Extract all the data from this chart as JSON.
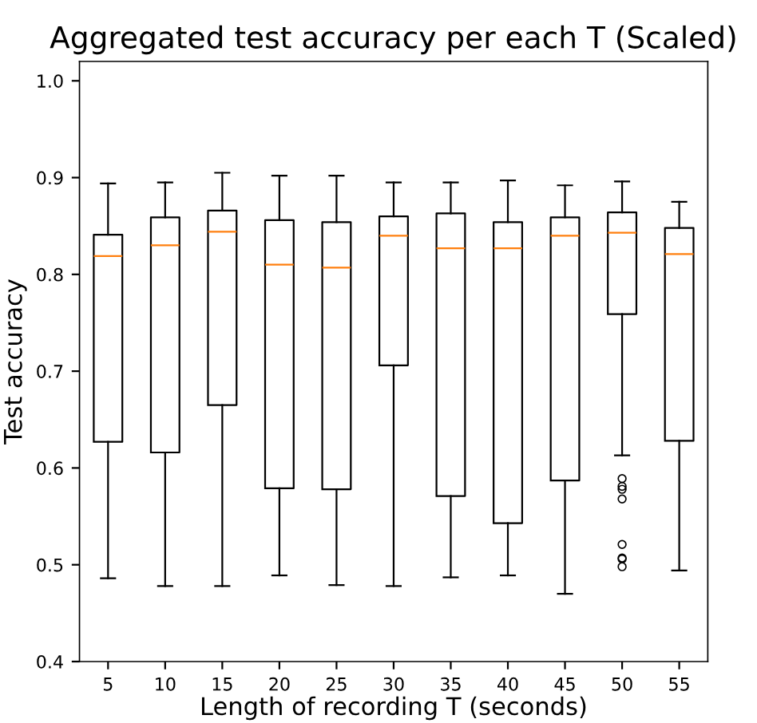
{
  "chart_data": {
    "type": "box",
    "title": "Aggregated test accuracy per each T (Scaled)",
    "xlabel": "Length of recording T (seconds)",
    "ylabel": "Test accuracy",
    "categories": [
      "5",
      "10",
      "15",
      "20",
      "25",
      "30",
      "35",
      "40",
      "45",
      "50",
      "55"
    ],
    "boxes": [
      {
        "low": 0.486,
        "q1": 0.627,
        "median": 0.819,
        "q3": 0.841,
        "high": 0.894
      },
      {
        "low": 0.478,
        "q1": 0.616,
        "median": 0.83,
        "q3": 0.859,
        "high": 0.895
      },
      {
        "low": 0.478,
        "q1": 0.665,
        "median": 0.844,
        "q3": 0.866,
        "high": 0.905
      },
      {
        "low": 0.489,
        "q1": 0.579,
        "median": 0.81,
        "q3": 0.856,
        "high": 0.902
      },
      {
        "low": 0.479,
        "q1": 0.578,
        "median": 0.807,
        "q3": 0.854,
        "high": 0.902
      },
      {
        "low": 0.478,
        "q1": 0.706,
        "median": 0.84,
        "q3": 0.86,
        "high": 0.895
      },
      {
        "low": 0.487,
        "q1": 0.571,
        "median": 0.827,
        "q3": 0.863,
        "high": 0.895
      },
      {
        "low": 0.489,
        "q1": 0.543,
        "median": 0.827,
        "q3": 0.854,
        "high": 0.897
      },
      {
        "low": 0.47,
        "q1": 0.587,
        "median": 0.84,
        "q3": 0.859,
        "high": 0.892
      },
      {
        "low": 0.613,
        "q1": 0.759,
        "median": 0.843,
        "q3": 0.864,
        "high": 0.896,
        "outliers": [
          0.589,
          0.581,
          0.578,
          0.568,
          0.521,
          0.507,
          0.506,
          0.498
        ]
      },
      {
        "low": 0.494,
        "q1": 0.628,
        "median": 0.821,
        "q3": 0.848,
        "high": 0.875
      }
    ],
    "ylim": [
      0.4,
      1.02
    ],
    "yticks": [
      {
        "value": 0.4,
        "label": "0.4"
      },
      {
        "value": 0.5,
        "label": "0.5"
      },
      {
        "value": 0.6,
        "label": "0.6"
      },
      {
        "value": 0.7,
        "label": "0.7"
      },
      {
        "value": 0.8,
        "label": "0.8"
      },
      {
        "value": 0.9,
        "label": "0.9"
      },
      {
        "value": 1.0,
        "label": "1.0"
      }
    ],
    "grid": false
  }
}
